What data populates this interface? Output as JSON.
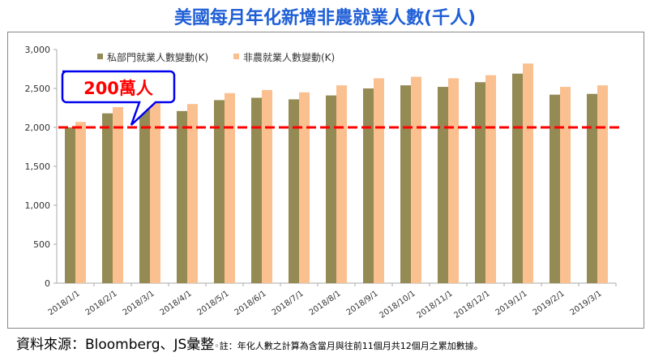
{
  "chart_data": {
    "type": "bar",
    "title": "美國每月年化新增非農就業人數(千人)",
    "categories": [
      "2018/1/1",
      "2018/2/1",
      "2018/3/1",
      "2018/4/1",
      "2018/5/1",
      "2018/6/1",
      "2018/7/1",
      "2018/8/1",
      "2018/9/1",
      "2018/10/1",
      "2018/11/1",
      "2018/12/1",
      "2019/1/1",
      "2019/2/1",
      "2019/3/1"
    ],
    "series": [
      {
        "name": "私部門就業人數變動(K)",
        "color": "#948a54",
        "values": [
          2000,
          2180,
          2230,
          2210,
          2350,
          2380,
          2360,
          2410,
          2500,
          2540,
          2520,
          2580,
          2690,
          2420,
          2430
        ]
      },
      {
        "name": "非農就業人數變動(K)",
        "color": "#fac090",
        "values": [
          2070,
          2260,
          2310,
          2300,
          2440,
          2480,
          2450,
          2540,
          2630,
          2650,
          2630,
          2670,
          2820,
          2520,
          2540
        ]
      }
    ],
    "ylim": [
      0,
      3000
    ],
    "yticks": [
      0,
      500,
      1000,
      1500,
      2000,
      2500,
      3000
    ],
    "ytick_labels": [
      "0",
      "500",
      "1,000",
      "1,500",
      "2,000",
      "2,500",
      "3,000"
    ],
    "reference_line": {
      "value": 2000,
      "color": "#ff0000",
      "style": "dashed"
    },
    "annotation": "200萬人",
    "legend": "top-left",
    "grid": false
  },
  "footer": {
    "source": "資料來源：Bloomberg、JS彙整",
    "note": "◦註：年化人數之計算為含當月與往前11個月共12個月之累加數據。"
  }
}
